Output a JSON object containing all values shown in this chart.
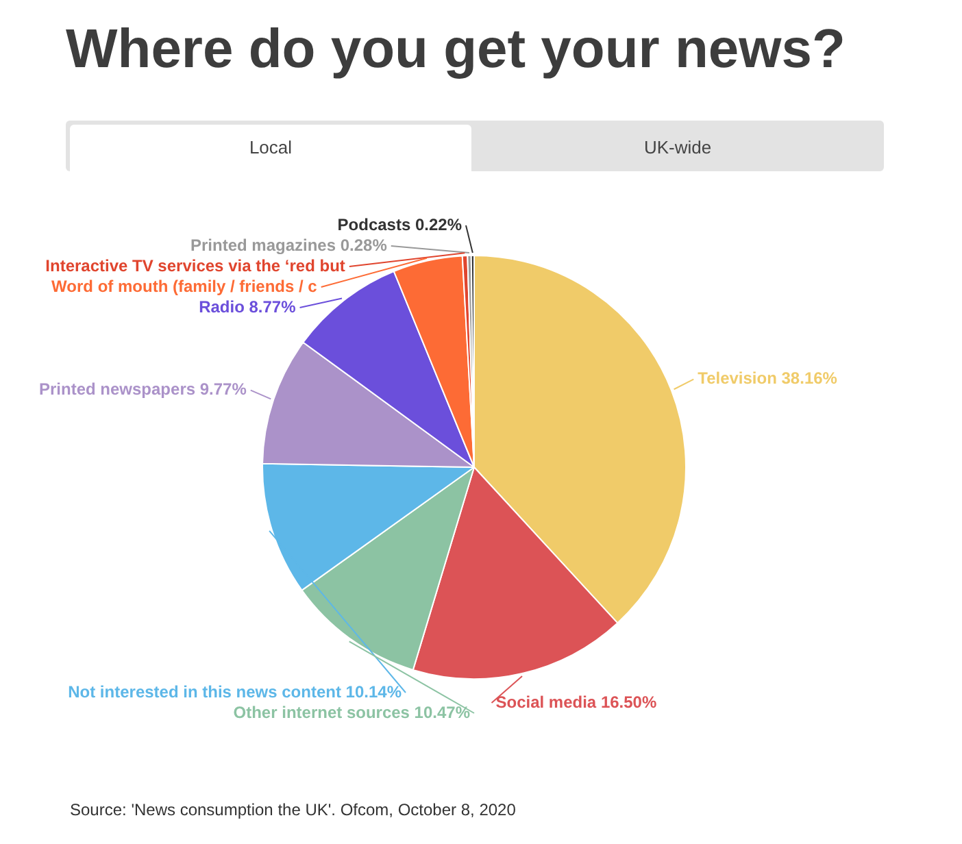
{
  "chart_data": {
    "type": "pie",
    "title": "Where do you get your news?",
    "categories": [
      "Television",
      "Social media",
      "Other internet sources",
      "Not interested in this news content",
      "Printed newspapers",
      "Radio",
      "Word of mouth (family / friends / c",
      "Interactive TV services via the ‘red but",
      "Printed magazines",
      "Podcasts"
    ],
    "values": [
      38.16,
      16.5,
      10.47,
      10.14,
      9.77,
      8.77,
      5.3,
      0.39,
      0.28,
      0.22
    ],
    "value_labels": [
      "38.16%",
      "16.50%",
      "10.47%",
      "10.14%",
      "9.77%",
      "8.77%",
      null,
      null,
      "0.28%",
      "0.22%"
    ],
    "colors": [
      "#f0cb69",
      "#dc5356",
      "#8cc3a3",
      "#5db7e8",
      "#ab92c9",
      "#6b4fdb",
      "#fd6b35",
      "#e0452e",
      "#999999",
      "#333333"
    ],
    "legend": false,
    "annotations": [
      "Local",
      "UK-wide",
      "Source: 'News consumption the UK'. Ofcom, October 8, 2020"
    ]
  }
}
